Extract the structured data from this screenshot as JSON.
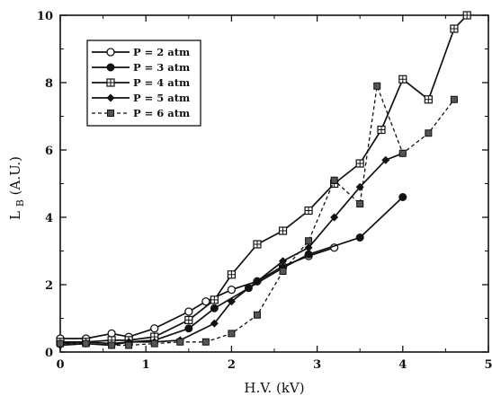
{
  "chart_data": {
    "type": "line",
    "xlabel": "H.V. (kV)",
    "ylabel_main": "L",
    "ylabel_sub": "B",
    "ylabel_units": "(A.U.)",
    "xlim": [
      0,
      5
    ],
    "ylim": [
      0,
      10
    ],
    "xticks": [
      0,
      1,
      2,
      3,
      4,
      5
    ],
    "yticks": [
      0,
      2,
      4,
      6,
      8,
      10
    ],
    "grid": false,
    "legend_position": "top-left",
    "series": [
      {
        "name": "P = 2 atm",
        "marker": "open-circle",
        "dash": "solid",
        "x": [
          0.0,
          0.3,
          0.6,
          0.8,
          1.1,
          1.5,
          1.7,
          2.0,
          2.3,
          2.6,
          2.9,
          3.2
        ],
        "y": [
          0.4,
          0.4,
          0.55,
          0.45,
          0.7,
          1.2,
          1.5,
          1.85,
          2.1,
          2.55,
          2.85,
          3.1
        ]
      },
      {
        "name": "P = 3 atm",
        "marker": "filled-circle",
        "dash": "solid",
        "x": [
          0.0,
          0.3,
          0.6,
          0.8,
          1.1,
          1.5,
          1.8,
          2.2,
          2.6,
          2.9,
          3.5,
          4.0
        ],
        "y": [
          0.25,
          0.3,
          0.25,
          0.3,
          0.35,
          0.7,
          1.3,
          1.9,
          2.5,
          2.9,
          3.4,
          4.6
        ]
      },
      {
        "name": "P = 4 atm",
        "marker": "square-grid",
        "dash": "solid",
        "x": [
          0.0,
          0.3,
          0.6,
          0.8,
          1.1,
          1.5,
          1.8,
          2.0,
          2.3,
          2.6,
          2.9,
          3.2,
          3.5,
          3.75,
          4.0,
          4.3,
          4.6,
          4.75
        ],
        "y": [
          0.3,
          0.3,
          0.35,
          0.35,
          0.45,
          0.95,
          1.55,
          2.3,
          3.2,
          3.6,
          4.2,
          5.0,
          5.6,
          6.6,
          8.1,
          7.5,
          9.6,
          10.0
        ]
      },
      {
        "name": "P = 5 atm",
        "marker": "filled-diamond",
        "dash": "solid",
        "x": [
          0.0,
          0.3,
          0.6,
          0.8,
          1.1,
          1.4,
          1.8,
          2.0,
          2.3,
          2.6,
          2.9,
          3.2,
          3.5,
          3.8,
          4.0
        ],
        "y": [
          0.2,
          0.25,
          0.2,
          0.3,
          0.3,
          0.35,
          0.85,
          1.5,
          2.1,
          2.7,
          3.1,
          4.0,
          4.9,
          5.7,
          5.9
        ]
      },
      {
        "name": "P = 6 atm",
        "marker": "filled-square",
        "dash": "dashed",
        "x": [
          0.0,
          0.3,
          0.6,
          0.8,
          1.1,
          1.4,
          1.7,
          2.0,
          2.3,
          2.6,
          2.9,
          3.2,
          3.5,
          3.7,
          4.0,
          4.3,
          4.6
        ],
        "y": [
          0.25,
          0.25,
          0.2,
          0.2,
          0.25,
          0.3,
          0.3,
          0.55,
          1.1,
          2.4,
          3.3,
          5.1,
          4.4,
          7.9,
          5.9,
          6.5,
          7.5
        ]
      }
    ]
  }
}
